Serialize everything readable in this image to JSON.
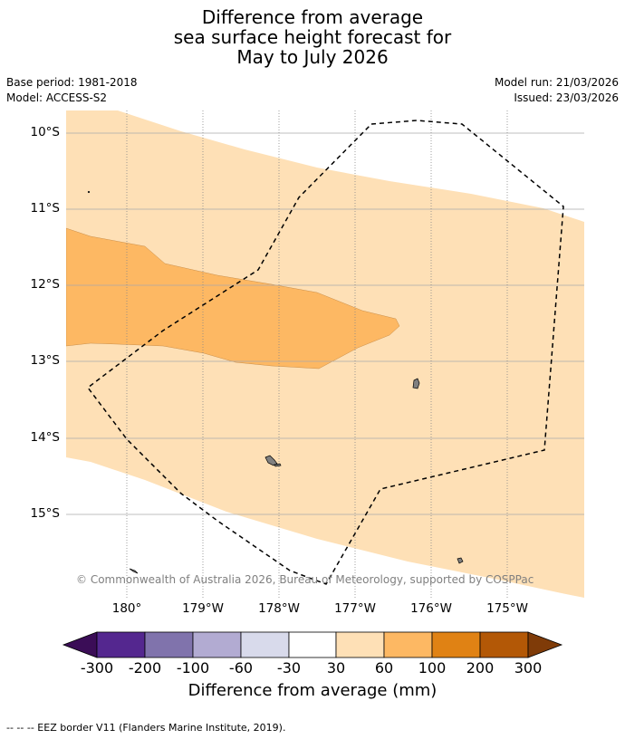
{
  "title": {
    "line1": "Difference from average",
    "line2": "sea surface height forecast for",
    "line3": "May to July 2026"
  },
  "meta_left": {
    "base_period": "Base period: 1981-2018",
    "model": "Model: ACCESS-S2"
  },
  "meta_right": {
    "model_run": "Model run: 21/03/2026",
    "issued": "Issued: 23/03/2026"
  },
  "map": {
    "latitude_labels": [
      "10°S",
      "11°S",
      "12°S",
      "13°S",
      "14°S",
      "15°S"
    ],
    "longitude_labels": [
      "180°",
      "179°W",
      "178°W",
      "177°W",
      "176°W",
      "175°W"
    ],
    "extent": {
      "lon_min": 179.2,
      "lon_max": 185.95,
      "lat_north": -9.7,
      "lat_south": -16.1
    },
    "copyright": "© Commonwealth of Australia 2026, Bureau of Meteorology, supported by COSPPac"
  },
  "colorbar": {
    "labels": [
      "-300",
      "-200",
      "-100",
      "-60",
      "-30",
      "30",
      "60",
      "100",
      "200",
      "300"
    ],
    "bins": [
      {
        "range": "< -300",
        "color": "#3b0d57"
      },
      {
        "range": "-300 to -200",
        "color": "#54278f"
      },
      {
        "range": "-200 to -100",
        "color": "#8073ac"
      },
      {
        "range": "-100 to -60",
        "color": "#b2abd2"
      },
      {
        "range": "-60 to -30",
        "color": "#d8daeb"
      },
      {
        "range": "-30 to 30",
        "color": "#ffffff"
      },
      {
        "range": "30 to 60",
        "color": "#fee0b6"
      },
      {
        "range": "60 to 100",
        "color": "#fdb863"
      },
      {
        "range": "100 to 200",
        "color": "#e08214"
      },
      {
        "range": "200 to 300",
        "color": "#b35806"
      },
      {
        "range": "> 300",
        "color": "#7f3b08"
      }
    ],
    "title": "Difference from average (mm)"
  },
  "footnote": "--  --  -- EEZ border V11 (Flanders Marine Institute, 2019)."
}
